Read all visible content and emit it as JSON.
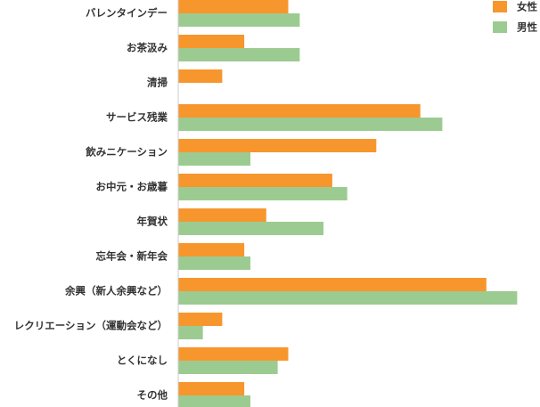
{
  "chart_data": {
    "type": "bar",
    "orientation": "horizontal",
    "categories": [
      "バレンタインデー",
      "お茶汲み",
      "清掃",
      "サービス残業",
      "飲みニケーション",
      "お中元・お歳暮",
      "年賀状",
      "忘年会・新年会",
      "余興（新人余興など）",
      "レクリエーション（運動会など）",
      "とくになし",
      "その他"
    ],
    "series": [
      {
        "name": "女性",
        "color": "#f7962d",
        "values": [
          12.5,
          7.5,
          5.0,
          27.5,
          22.5,
          17.5,
          10.0,
          7.5,
          35.0,
          5.0,
          12.5,
          7.5
        ]
      },
      {
        "name": "男性",
        "color": "#9ccb91",
        "values": [
          13.8,
          13.8,
          0,
          30.0,
          8.2,
          19.2,
          16.5,
          8.2,
          38.5,
          2.8,
          11.3,
          8.2
        ]
      }
    ],
    "xlim": [
      0,
      40
    ],
    "grid": false,
    "legend": {
      "position": "top-right"
    },
    "title": "",
    "xlabel": "",
    "ylabel": ""
  }
}
